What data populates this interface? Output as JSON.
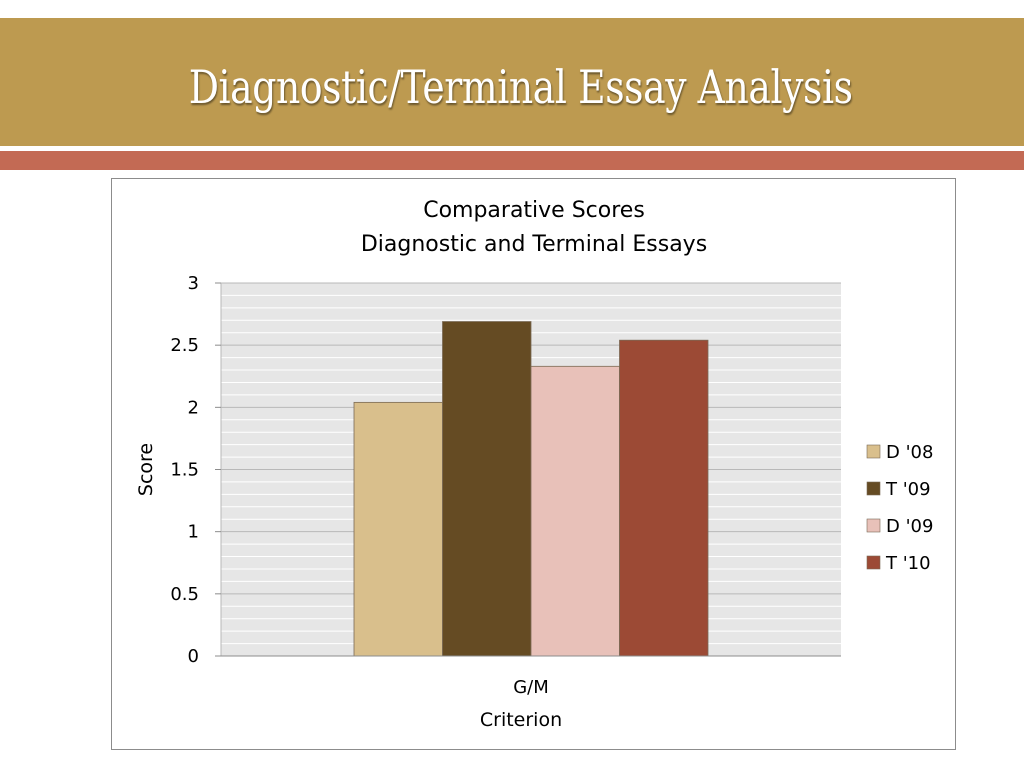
{
  "slide": {
    "title": "Diagnostic/Terminal Essay Analysis"
  },
  "colors": {
    "band": "#bd9a50",
    "rule": "#c36a54",
    "plot_bg": "#e6e6e6",
    "grid": "#ffffff"
  },
  "chart_data": {
    "type": "bar",
    "title": [
      "Comparative Scores",
      "Diagnostic and Terminal Essays"
    ],
    "xlabel": "Criterion",
    "ylabel": "Score",
    "ylim": [
      0,
      3
    ],
    "yticks": [
      "0",
      "0.5",
      "1",
      "1.5",
      "2",
      "2.5",
      "3"
    ],
    "categories": [
      "G/M"
    ],
    "grid": true,
    "legend_position": "right",
    "series": [
      {
        "name": "D '08",
        "values": [
          2.04
        ],
        "color": "#d9bf8c"
      },
      {
        "name": "T '09",
        "values": [
          2.69
        ],
        "color": "#654b23"
      },
      {
        "name": "D '09",
        "values": [
          2.33
        ],
        "color": "#e8c1b9"
      },
      {
        "name": "T '10",
        "values": [
          2.54
        ],
        "color": "#9c4a35"
      }
    ]
  }
}
